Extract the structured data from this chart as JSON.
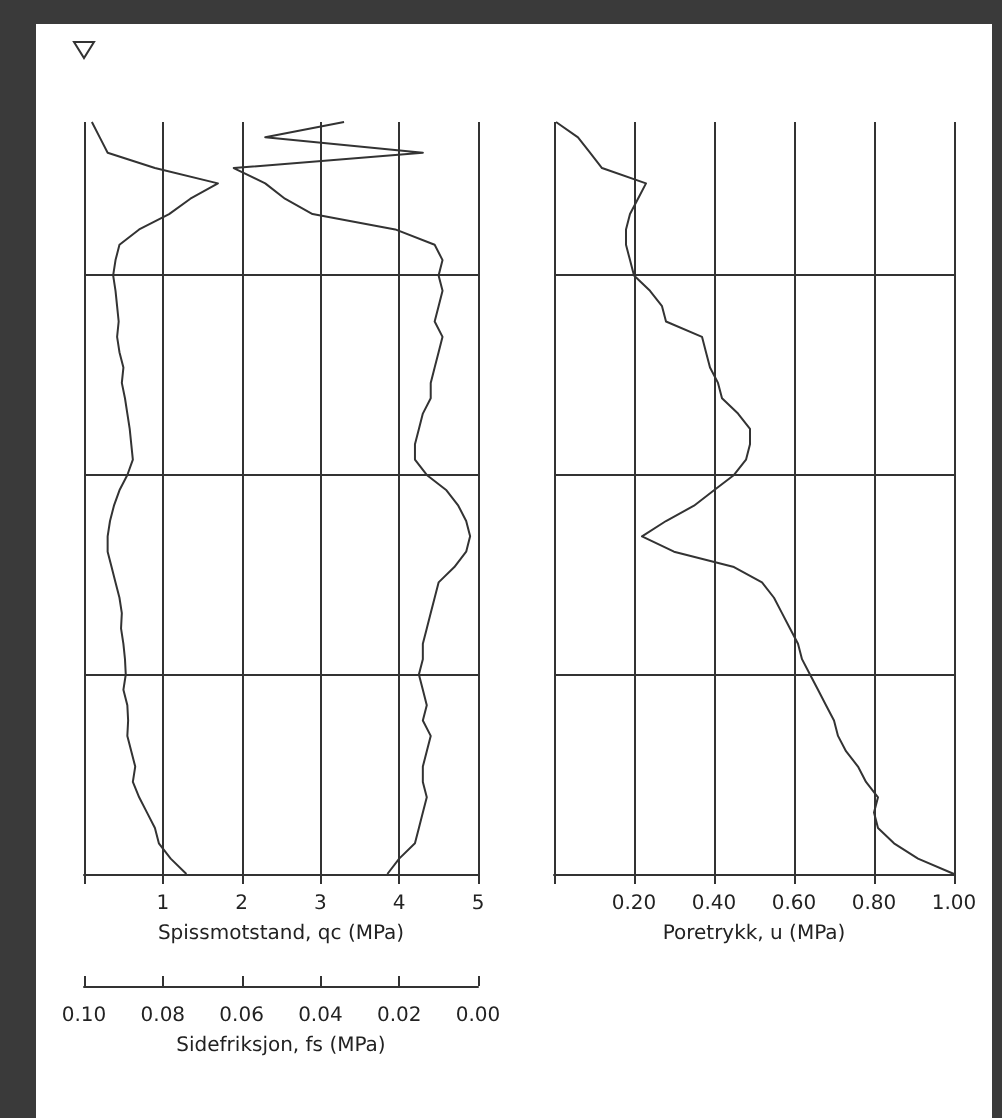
{
  "chart_data": [
    {
      "type": "line",
      "orientation": "horizontal",
      "grid": true,
      "tick_labels": "x",
      "xlabel": "Spissmotstand, qc (MPa)",
      "x2label": "Sidefriksjon, fs (MPa)",
      "categories": [
        null,
        null,
        null,
        null,
        null,
        null,
        null,
        null,
        null,
        null,
        null,
        null,
        null,
        null,
        null,
        null,
        null,
        null,
        null,
        null,
        null,
        null,
        null,
        null,
        null,
        null,
        null,
        null,
        null,
        null,
        null,
        null,
        null,
        null,
        null,
        null,
        null,
        null,
        null,
        null,
        null,
        null,
        null,
        null,
        null,
        null,
        null,
        null,
        null,
        null
      ],
      "xlim": [
        0,
        5
      ],
      "xticks": [
        {
          "value": 0,
          "label": null
        },
        1,
        2,
        3,
        4,
        5
      ],
      "x2lim": [
        0.1,
        0.0
      ],
      "x2ticks": [
        {
          "value": 0.1,
          "label": "0.10"
        },
        {
          "value": 0.08,
          "label": "0.08"
        },
        {
          "value": 0.06,
          "label": "0.06"
        },
        {
          "value": 0.04,
          "label": "0.04"
        },
        {
          "value": 0.02,
          "label": "0.02"
        },
        {
          "value": 0.0,
          "label": "0.00"
        }
      ],
      "series": [
        {
          "color": "#333333",
          "values": [
            0.1,
            0.2,
            0.3,
            0.9,
            1.7,
            1.35,
            1.08,
            0.7,
            0.45,
            0.4,
            0.37,
            0.4,
            0.42,
            0.44,
            0.42,
            0.45,
            0.5,
            0.48,
            0.52,
            0.55,
            0.58,
            0.6,
            0.62,
            0.55,
            0.45,
            0.38,
            0.33,
            0.3,
            0.3,
            0.35,
            0.4,
            0.45,
            0.48,
            0.47,
            0.5,
            0.52,
            0.53,
            0.5,
            0.55,
            0.56,
            0.55,
            0.6,
            0.65,
            0.62,
            0.7,
            0.8,
            0.9,
            0.95,
            1.1,
            1.3
          ]
        },
        {
          "color": "#333333",
          "axis": "x2",
          "values": [
            0.034,
            0.054,
            0.014,
            0.062,
            0.054,
            0.049,
            0.042,
            0.021,
            0.011,
            0.009,
            0.01,
            0.009,
            0.01,
            0.011,
            0.009,
            0.01,
            0.011,
            0.012,
            0.012,
            0.014,
            0.015,
            0.016,
            0.016,
            0.013,
            0.008,
            0.005,
            0.003,
            0.002,
            0.003,
            0.006,
            0.01,
            0.011,
            0.012,
            0.013,
            0.014,
            0.014,
            0.015,
            0.014,
            0.013,
            0.014,
            0.012,
            0.013,
            0.014,
            0.014,
            0.013,
            0.014,
            0.015,
            0.016,
            0.02,
            0.023
          ]
        }
      ]
    },
    {
      "type": "line",
      "orientation": "horizontal",
      "grid": true,
      "tick_labels": "x",
      "xlabel": "Poretrykk, u (MPa)",
      "categories": [
        null,
        null,
        null,
        null,
        null,
        null,
        null,
        null,
        null,
        null,
        null,
        null,
        null,
        null,
        null,
        null,
        null,
        null,
        null,
        null,
        null,
        null,
        null,
        null,
        null,
        null,
        null,
        null,
        null,
        null,
        null,
        null,
        null,
        null,
        null,
        null,
        null,
        null,
        null,
        null,
        null,
        null,
        null,
        null,
        null,
        null,
        null,
        null,
        null,
        null
      ],
      "xlim": [
        0,
        1
      ],
      "xticks": [
        {
          "value": 0,
          "label": null
        },
        {
          "value": 0.2,
          "label": "0.20"
        },
        {
          "value": 0.4,
          "label": "0.40"
        },
        {
          "value": 0.6,
          "label": "0.60"
        },
        {
          "value": 0.8,
          "label": "0.80"
        },
        {
          "value": 1,
          "label": "1.00"
        }
      ],
      "series": [
        {
          "color": "#333333",
          "values": [
            0.005,
            0.06,
            0.09,
            0.12,
            0.23,
            0.21,
            0.19,
            0.18,
            0.18,
            0.19,
            0.2,
            0.24,
            0.27,
            0.28,
            0.37,
            0.38,
            0.39,
            0.41,
            0.42,
            0.46,
            0.49,
            0.49,
            0.48,
            0.45,
            0.4,
            0.35,
            0.28,
            0.22,
            0.3,
            0.45,
            0.52,
            0.55,
            0.57,
            0.59,
            0.61,
            0.62,
            0.64,
            0.66,
            0.68,
            0.7,
            0.71,
            0.73,
            0.76,
            0.78,
            0.81,
            0.8,
            0.81,
            0.85,
            0.91,
            1.0
          ]
        }
      ]
    }
  ]
}
